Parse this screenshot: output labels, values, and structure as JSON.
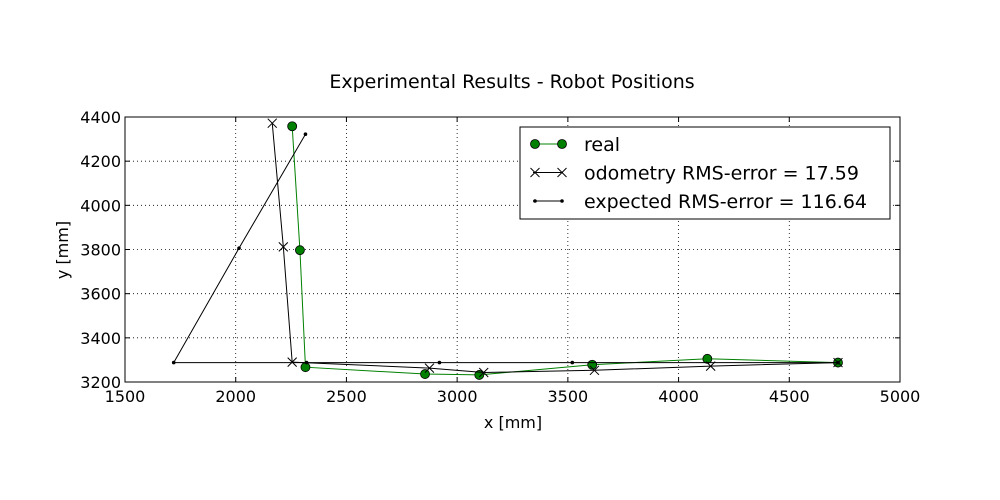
{
  "chart_data": {
    "type": "line",
    "title": "Experimental Results - Robot Positions",
    "xlabel": "x [mm]",
    "ylabel": "y [mm]",
    "xlim": [
      1500,
      5000
    ],
    "ylim": [
      3200,
      4400
    ],
    "xticks": [
      1500,
      2000,
      2500,
      3000,
      3500,
      4000,
      4500,
      5000
    ],
    "yticks": [
      3200,
      3400,
      3600,
      3800,
      4000,
      4200,
      4400
    ],
    "grid": true,
    "legend_position": "top-right",
    "series": [
      {
        "name": "real",
        "color": "#008000",
        "marker": "circle",
        "points": [
          [
            4720,
            3288
          ],
          [
            4130,
            3305
          ],
          [
            3610,
            3278
          ],
          [
            3100,
            3232
          ],
          [
            2855,
            3236
          ],
          [
            2315,
            3267
          ],
          [
            2290,
            3797
          ],
          [
            2255,
            4358
          ]
        ]
      },
      {
        "name": "odometry RMS-error = 17.59",
        "color": "#000000",
        "marker": "x",
        "points": [
          [
            4720,
            3288
          ],
          [
            4145,
            3272
          ],
          [
            3620,
            3253
          ],
          [
            3120,
            3243
          ],
          [
            2875,
            3263
          ],
          [
            2255,
            3290
          ],
          [
            2215,
            3812
          ],
          [
            2165,
            4372
          ]
        ]
      },
      {
        "name": "expected RMS-error = 116.64",
        "color": "#000000",
        "marker": "dot",
        "points": [
          [
            4720,
            3288
          ],
          [
            3520,
            3288
          ],
          [
            2920,
            3288
          ],
          [
            2320,
            3288
          ],
          [
            1720,
            3288
          ],
          [
            2015,
            3806
          ],
          [
            2315,
            4322
          ]
        ]
      }
    ]
  }
}
